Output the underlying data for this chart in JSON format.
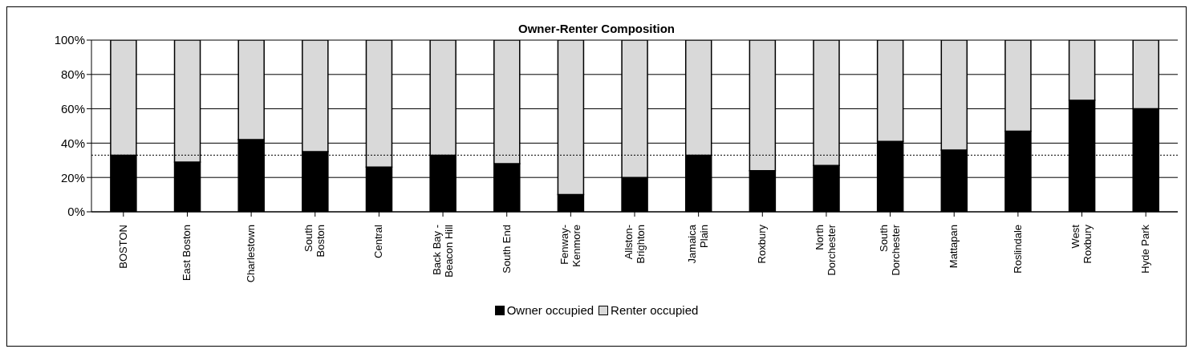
{
  "chart_data": {
    "type": "bar",
    "title": "Owner-Renter Composition",
    "stacked": true,
    "categories": [
      "BOSTON",
      "East Boston",
      "Charlestown",
      "South\nBoston",
      "Central",
      "Back Bay -\nBeacon Hill",
      "South End",
      "Fenway-\nKenmore",
      "Allston-\nBrighton",
      "Jamaica\nPlain",
      "Roxbury",
      "North\nDorchester",
      "South\nDorchester",
      "Mattapan",
      "Roslindale",
      "West\nRoxbury",
      "Hyde Park"
    ],
    "series": [
      {
        "name": "Owner occupied",
        "color": "#000000",
        "values": [
          33,
          29,
          42,
          35,
          26,
          33,
          28,
          10,
          20,
          33,
          24,
          27,
          41,
          36,
          47,
          65,
          60
        ]
      },
      {
        "name": "Renter occupied",
        "color": "#d9d9d9",
        "values": [
          67,
          71,
          58,
          65,
          74,
          67,
          72,
          90,
          80,
          67,
          76,
          73,
          59,
          64,
          53,
          35,
          40
        ]
      }
    ],
    "ylim": [
      0,
      100
    ],
    "yticks": [
      {
        "value": 0,
        "label": "0%"
      },
      {
        "value": 20,
        "label": "20%"
      },
      {
        "value": 40,
        "label": "40%"
      },
      {
        "value": 60,
        "label": "60%"
      },
      {
        "value": 80,
        "label": "80%"
      },
      {
        "value": 100,
        "label": "100%"
      }
    ],
    "grid": "y",
    "legend": "bottom",
    "ref_lines": [
      {
        "axis": "y",
        "value": 33,
        "color": "#000000",
        "line_style": "dotted"
      }
    ]
  }
}
